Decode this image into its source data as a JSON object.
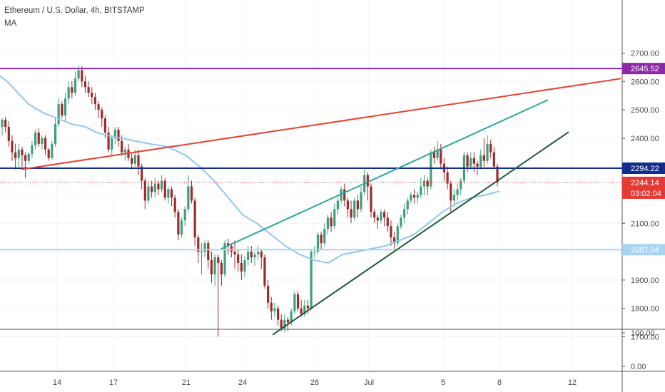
{
  "header": {
    "title": "Ethereum / U.S. Dollar, 4h, BITSTAMP",
    "indicator": "MA"
  },
  "colors": {
    "up": "#3c9f7e",
    "down": "#9e2a2a",
    "ma": "#8fc8ee",
    "purple_line": "#8d2aa8",
    "navy_line": "#142d8c",
    "light_line": "#a8d4f2",
    "red_trend": "#e8412e",
    "teal_trend": "#2aa89c",
    "dark_trend": "#1e5a3c",
    "last_price_tag": "#e53935"
  },
  "chart_data": {
    "type": "candlestick",
    "title": "Ethereum / U.S. Dollar, 4h, BITSTAMP",
    "xlabel": "",
    "ylabel": "",
    "ylim": [
      1650,
      2740
    ],
    "x_tick_labels": [
      "14",
      "17",
      "21",
      "24",
      "28",
      "Jul",
      "5",
      "8",
      "12"
    ],
    "y_tick_labels": [
      "2700.00",
      "2600.00",
      "2500.00",
      "2400.00",
      "2300.00",
      "2200.00",
      "2100.00",
      "2000.00",
      "1900.00",
      "1800.00",
      "1700.00"
    ],
    "lower_pane_tick_labels": [
      "100.00",
      "0.00"
    ],
    "price_tags": [
      {
        "label": "2645.52",
        "value": 2645.52,
        "color": "#8d2aa8"
      },
      {
        "label": "2294.22",
        "value": 2294.22,
        "color": "#142d8c"
      },
      {
        "label": "2244.14",
        "value": 2244.14,
        "color": "#e53935"
      },
      {
        "label": "03:02:04",
        "value": 2213,
        "color": "#e53935"
      },
      {
        "label": "2007.04",
        "value": 2007.04,
        "color": "#a8d4f2"
      }
    ],
    "horizontal_lines": [
      {
        "value": 2645.52,
        "color": "#8d2aa8"
      },
      {
        "value": 2294.22,
        "color": "#142d8c"
      },
      {
        "value": 2007.04,
        "color": "#a8d4f2"
      }
    ],
    "candles": [
      [
        2440,
        2465,
        2410,
        2470
      ],
      [
        2465,
        2440,
        2420,
        2475
      ],
      [
        2440,
        2390,
        2370,
        2460
      ],
      [
        2390,
        2350,
        2320,
        2410
      ],
      [
        2350,
        2330,
        2290,
        2380
      ],
      [
        2330,
        2360,
        2300,
        2380
      ],
      [
        2360,
        2340,
        2300,
        2370
      ],
      [
        2340,
        2320,
        2260,
        2350
      ],
      [
        2320,
        2345,
        2310,
        2350
      ],
      [
        2345,
        2375,
        2330,
        2390
      ],
      [
        2375,
        2420,
        2360,
        2430
      ],
      [
        2420,
        2380,
        2370,
        2435
      ],
      [
        2380,
        2400,
        2360,
        2410
      ],
      [
        2400,
        2360,
        2340,
        2410
      ],
      [
        2360,
        2330,
        2320,
        2365
      ],
      [
        2330,
        2380,
        2325,
        2390
      ],
      [
        2380,
        2450,
        2370,
        2470
      ],
      [
        2450,
        2520,
        2440,
        2540
      ],
      [
        2520,
        2480,
        2470,
        2530
      ],
      [
        2480,
        2540,
        2460,
        2560
      ],
      [
        2540,
        2580,
        2520,
        2600
      ],
      [
        2580,
        2560,
        2540,
        2600
      ],
      [
        2560,
        2610,
        2550,
        2635
      ],
      [
        2610,
        2640,
        2600,
        2655
      ],
      [
        2640,
        2600,
        2580,
        2655
      ],
      [
        2600,
        2580,
        2560,
        2620
      ],
      [
        2580,
        2560,
        2545,
        2600
      ],
      [
        2560,
        2545,
        2520,
        2580
      ],
      [
        2545,
        2520,
        2500,
        2560
      ],
      [
        2520,
        2500,
        2470,
        2530
      ],
      [
        2500,
        2470,
        2440,
        2510
      ],
      [
        2470,
        2420,
        2400,
        2480
      ],
      [
        2420,
        2360,
        2350,
        2440
      ],
      [
        2360,
        2400,
        2340,
        2410
      ],
      [
        2400,
        2430,
        2380,
        2440
      ],
      [
        2430,
        2390,
        2370,
        2440
      ],
      [
        2390,
        2350,
        2340,
        2410
      ],
      [
        2350,
        2360,
        2320,
        2370
      ],
      [
        2360,
        2330,
        2320,
        2380
      ],
      [
        2330,
        2310,
        2290,
        2350
      ],
      [
        2310,
        2340,
        2300,
        2360
      ],
      [
        2340,
        2300,
        2270,
        2360
      ],
      [
        2300,
        2250,
        2220,
        2310
      ],
      [
        2250,
        2180,
        2150,
        2260
      ],
      [
        2180,
        2230,
        2170,
        2250
      ],
      [
        2230,
        2210,
        2190,
        2250
      ],
      [
        2210,
        2240,
        2190,
        2260
      ],
      [
        2240,
        2220,
        2200,
        2250
      ],
      [
        2220,
        2250,
        2210,
        2270
      ],
      [
        2250,
        2190,
        2180,
        2260
      ],
      [
        2190,
        2220,
        2170,
        2230
      ],
      [
        2220,
        2190,
        2160,
        2230
      ],
      [
        2190,
        2140,
        2120,
        2200
      ],
      [
        2140,
        2060,
        2040,
        2150
      ],
      [
        2060,
        2110,
        2050,
        2120
      ],
      [
        2110,
        2150,
        2090,
        2160
      ],
      [
        2150,
        2230,
        2140,
        2270
      ],
      [
        2230,
        2180,
        2170,
        2250
      ],
      [
        2180,
        2050,
        2020,
        2190
      ],
      [
        2050,
        2000,
        1960,
        2060
      ],
      [
        2000,
        2000,
        1920,
        2030
      ],
      [
        2000,
        2030,
        1980,
        2040
      ],
      [
        2030,
        1970,
        1940,
        2040
      ],
      [
        1970,
        1920,
        1890,
        2000
      ],
      [
        1920,
        1980,
        1880,
        1990
      ],
      [
        1980,
        1960,
        1700,
        1990
      ],
      [
        1960,
        1920,
        1880,
        1970
      ],
      [
        1920,
        2030,
        1910,
        2040
      ],
      [
        2030,
        2020,
        1990,
        2045
      ],
      [
        2020,
        2000,
        1980,
        2030
      ],
      [
        2000,
        1990,
        1940,
        2040
      ],
      [
        1990,
        1960,
        1930,
        2010
      ],
      [
        1960,
        1930,
        1900,
        1990
      ],
      [
        1930,
        1970,
        1910,
        1985
      ],
      [
        1970,
        2000,
        1950,
        2020
      ],
      [
        2000,
        1980,
        1960,
        2020
      ],
      [
        1980,
        1990,
        1950,
        2000
      ],
      [
        1990,
        2000,
        1970,
        2020
      ],
      [
        2000,
        1980,
        1940,
        2010
      ],
      [
        1980,
        1880,
        1870,
        1990
      ],
      [
        1880,
        1820,
        1800,
        1900
      ],
      [
        1820,
        1790,
        1760,
        1840
      ],
      [
        1790,
        1800,
        1770,
        1820
      ],
      [
        1800,
        1760,
        1740,
        1810
      ],
      [
        1760,
        1730,
        1720,
        1780
      ],
      [
        1730,
        1760,
        1715,
        1780
      ],
      [
        1760,
        1750,
        1720,
        1770
      ],
      [
        1750,
        1790,
        1740,
        1800
      ],
      [
        1790,
        1850,
        1780,
        1860
      ],
      [
        1850,
        1800,
        1790,
        1860
      ],
      [
        1800,
        1780,
        1770,
        1830
      ],
      [
        1780,
        1810,
        1770,
        1830
      ],
      [
        1810,
        1800,
        1780,
        1830
      ],
      [
        1800,
        2000,
        1795,
        2010
      ],
      [
        2000,
        2000,
        1980,
        2020
      ],
      [
        2000,
        2060,
        1990,
        2070
      ],
      [
        2060,
        2030,
        2010,
        2070
      ],
      [
        2030,
        2080,
        2020,
        2100
      ],
      [
        2080,
        2120,
        2060,
        2130
      ],
      [
        2120,
        2090,
        2070,
        2140
      ],
      [
        2090,
        2150,
        2080,
        2170
      ],
      [
        2150,
        2180,
        2130,
        2190
      ],
      [
        2180,
        2220,
        2170,
        2230
      ],
      [
        2220,
        2180,
        2160,
        2240
      ],
      [
        2180,
        2150,
        2120,
        2190
      ],
      [
        2150,
        2120,
        2100,
        2180
      ],
      [
        2120,
        2180,
        2110,
        2190
      ],
      [
        2180,
        2150,
        2120,
        2200
      ],
      [
        2150,
        2210,
        2140,
        2230
      ],
      [
        2210,
        2270,
        2200,
        2290
      ],
      [
        2270,
        2230,
        2180,
        2280
      ],
      [
        2230,
        2140,
        2120,
        2240
      ],
      [
        2140,
        2120,
        2100,
        2150
      ],
      [
        2120,
        2110,
        2080,
        2130
      ],
      [
        2110,
        2140,
        2100,
        2150
      ],
      [
        2140,
        2120,
        2090,
        2150
      ],
      [
        2120,
        2090,
        2070,
        2140
      ],
      [
        2090,
        2050,
        2020,
        2110
      ],
      [
        2050,
        2030,
        2010,
        2070
      ],
      [
        2030,
        2090,
        2020,
        2100
      ],
      [
        2090,
        2120,
        2080,
        2130
      ],
      [
        2120,
        2150,
        2100,
        2170
      ],
      [
        2150,
        2180,
        2130,
        2190
      ],
      [
        2180,
        2200,
        2170,
        2210
      ],
      [
        2200,
        2190,
        2170,
        2220
      ],
      [
        2190,
        2200,
        2170,
        2210
      ],
      [
        2200,
        2230,
        2190,
        2260
      ],
      [
        2230,
        2250,
        2200,
        2270
      ],
      [
        2250,
        2230,
        2200,
        2260
      ],
      [
        2230,
        2350,
        2220,
        2360
      ],
      [
        2350,
        2330,
        2310,
        2370
      ],
      [
        2330,
        2360,
        2320,
        2390
      ],
      [
        2360,
        2310,
        2290,
        2380
      ],
      [
        2310,
        2280,
        2250,
        2330
      ],
      [
        2280,
        2240,
        2220,
        2300
      ],
      [
        2240,
        2180,
        2140,
        2250
      ],
      [
        2180,
        2200,
        2160,
        2220
      ],
      [
        2200,
        2220,
        2180,
        2240
      ],
      [
        2220,
        2250,
        2200,
        2260
      ],
      [
        2250,
        2340,
        2240,
        2350
      ],
      [
        2340,
        2300,
        2280,
        2350
      ],
      [
        2300,
        2330,
        2290,
        2350
      ],
      [
        2330,
        2310,
        2280,
        2350
      ],
      [
        2310,
        2300,
        2270,
        2320
      ],
      [
        2300,
        2340,
        2290,
        2360
      ],
      [
        2340,
        2320,
        2300,
        2400
      ],
      [
        2320,
        2380,
        2310,
        2410
      ],
      [
        2380,
        2350,
        2330,
        2395
      ],
      [
        2350,
        2300,
        2290,
        2370
      ],
      [
        2300,
        2244,
        2230,
        2310
      ]
    ],
    "ma": [
      [
        0,
        2620
      ],
      [
        10,
        2600
      ],
      [
        25,
        2560
      ],
      [
        40,
        2520
      ],
      [
        60,
        2490
      ],
      [
        80,
        2470
      ],
      [
        100,
        2450
      ],
      [
        120,
        2440
      ],
      [
        135,
        2420
      ],
      [
        150,
        2410
      ],
      [
        170,
        2400
      ],
      [
        190,
        2390
      ],
      [
        210,
        2380
      ],
      [
        235,
        2370
      ],
      [
        260,
        2340
      ],
      [
        280,
        2300
      ],
      [
        300,
        2250
      ],
      [
        320,
        2190
      ],
      [
        340,
        2130
      ],
      [
        360,
        2100
      ],
      [
        380,
        2060
      ],
      [
        400,
        2020
      ],
      [
        420,
        1990
      ],
      [
        440,
        1970
      ],
      [
        460,
        1960
      ],
      [
        480,
        1990
      ],
      [
        500,
        2000
      ],
      [
        520,
        2010
      ],
      [
        540,
        2020
      ],
      [
        560,
        2040
      ],
      [
        580,
        2060
      ],
      [
        600,
        2100
      ],
      [
        620,
        2140
      ],
      [
        640,
        2170
      ],
      [
        660,
        2190
      ],
      [
        680,
        2200
      ],
      [
        700,
        2213
      ]
    ],
    "trend_lines": [
      {
        "name": "red",
        "from": [
          30,
          2290
        ],
        "to": [
          870,
          2610
        ],
        "color": "#e8412e"
      },
      {
        "name": "teal-upper",
        "from": [
          310,
          2010
        ],
        "to": [
          768,
          2535
        ],
        "color": "#2aa89c"
      },
      {
        "name": "dark-lower",
        "from": [
          382,
          1707
        ],
        "to": [
          797,
          2422
        ],
        "color": "#1e5a3c"
      }
    ]
  }
}
